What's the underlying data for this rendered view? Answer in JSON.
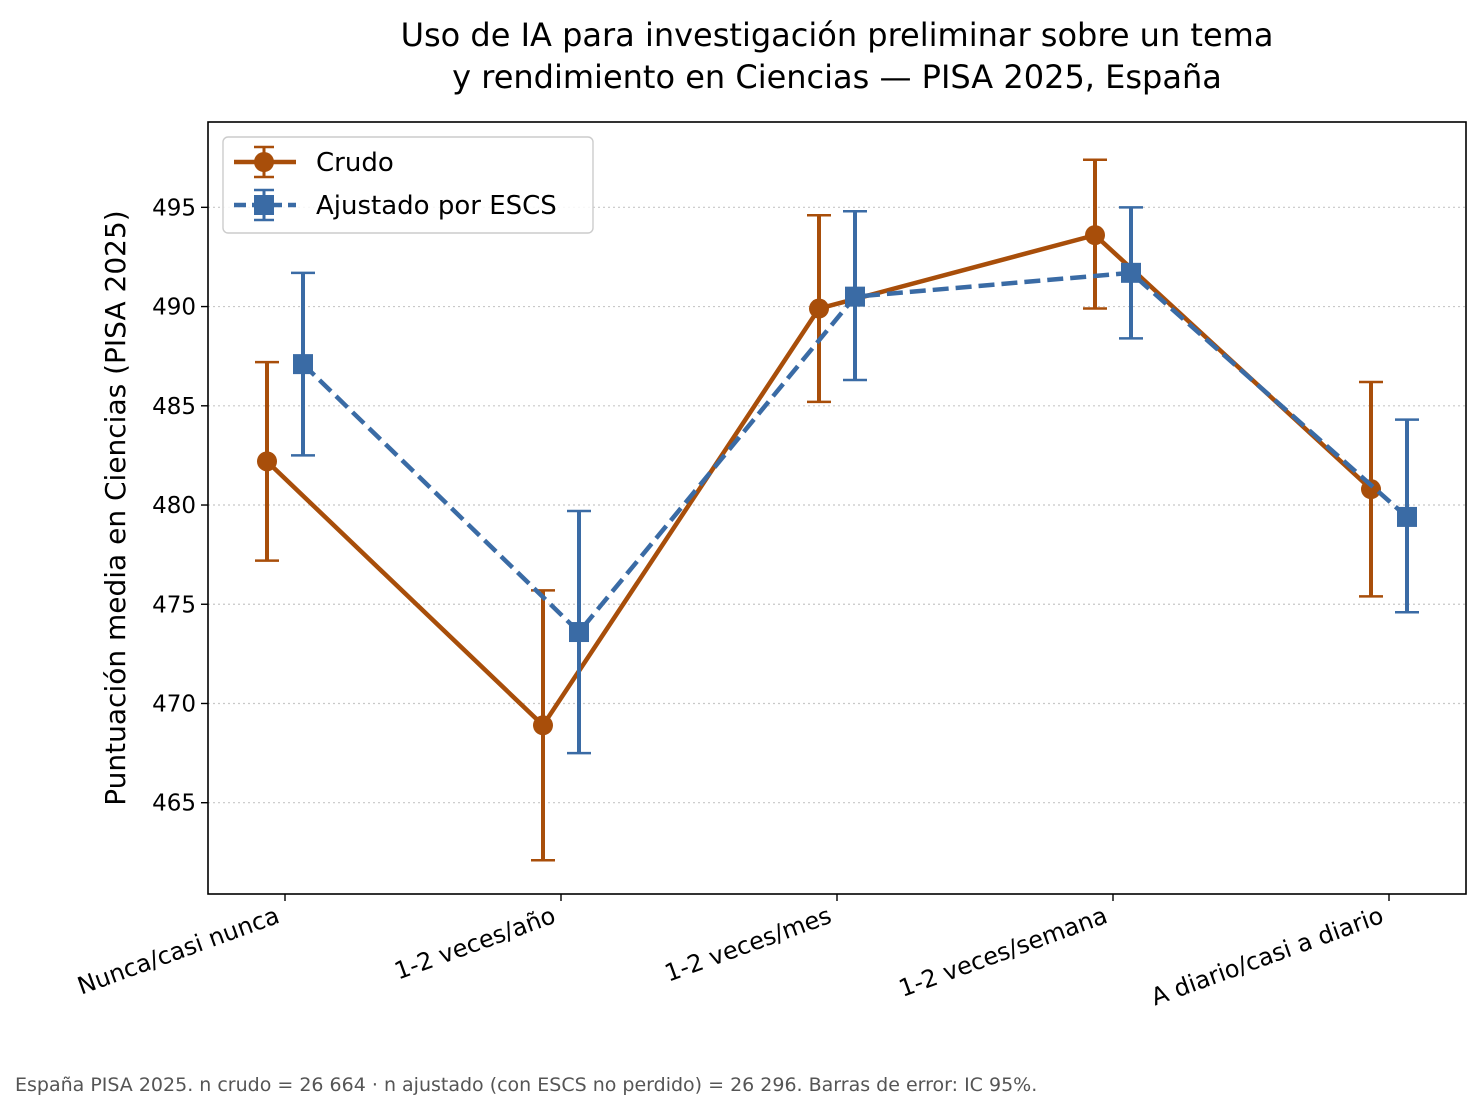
{
  "chart_data": {
    "type": "line",
    "title": [
      "Uso de IA para investigación preliminar sobre un tema",
      "y rendimiento en Ciencias — PISA 2025, España"
    ],
    "ylabel": "Puntuación media en Ciencias (PISA 2025)",
    "xlabel": "",
    "categories": [
      "Nunca/casi nunca",
      "1-2 veces/año",
      "1-2 veces/mes",
      "1-2 veces/semana",
      "A diario/casi a diario"
    ],
    "ylim": [
      460.4,
      499.3
    ],
    "yticks": [
      465,
      470,
      475,
      480,
      485,
      490,
      495
    ],
    "grid": "horizontal dotted",
    "legend_position": "top-left",
    "series": [
      {
        "name": "Crudo",
        "color": "#A84E0A",
        "marker": "circle",
        "linestyle": "solid",
        "values": [
          482.2,
          468.9,
          489.9,
          493.6,
          480.8
        ],
        "ci_low": [
          477.2,
          462.1,
          485.2,
          489.9,
          475.4
        ],
        "ci_high": [
          487.2,
          475.7,
          494.6,
          497.4,
          486.2
        ]
      },
      {
        "name": "Ajustado por ESCS",
        "color": "#3A6BA5",
        "marker": "square",
        "linestyle": "dashed",
        "values": [
          487.1,
          473.6,
          490.5,
          491.7,
          479.4
        ],
        "ci_low": [
          482.5,
          467.5,
          486.3,
          488.4,
          474.6
        ],
        "ci_high": [
          491.7,
          479.7,
          494.8,
          495.0,
          484.3
        ]
      }
    ]
  },
  "footnote": "España  PISA 2025. n crudo = 26 664 · n ajustado (con ESCS no perdido) = 26 296. Barras de error: IC 95%."
}
